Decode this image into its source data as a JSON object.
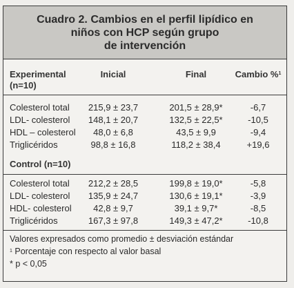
{
  "table": {
    "title_lines": [
      "Cuadro 2. Cambios en el perfil lipídico en",
      "niños con HCP según grupo",
      "de intervención"
    ],
    "headers": {
      "group_line1": "Experimental",
      "group_line2": "(n=10)",
      "initial": "Inicial",
      "final": "Final",
      "change": "Cambio %",
      "change_sup": "1"
    },
    "experimental": {
      "rows": [
        {
          "label": "Colesterol total",
          "initial": "215,9 ± 23,7",
          "final": "201,5 ± 28,9*",
          "change": "-6,7"
        },
        {
          "label": "LDL- colesterol",
          "initial": "148,1 ± 20,7",
          "final": "132,5 ± 22,5*",
          "change": "-10,5"
        },
        {
          "label": "HDL – colesterol",
          "initial": "48,0 ± 6,8",
          "final": "43,5 ± 9,9",
          "change": "-9,4"
        },
        {
          "label": "Triglicéridos",
          "initial": "98,8 ± 16,8",
          "final": "118,2 ± 38,4",
          "change": "+19,6"
        }
      ]
    },
    "control": {
      "label": "Control (n=10)",
      "rows": [
        {
          "label": "Colesterol total",
          "initial": "212,2 ± 28,5",
          "final": "199,8 ± 19,0*",
          "change": "-5,8"
        },
        {
          "label": "LDL- colesterol",
          "initial": "135,9 ± 24,7",
          "final": "130,6 ± 19,1*",
          "change": "-3,9"
        },
        {
          "label": "HDL- colesterol",
          "initial": "42,8 ± 9,7",
          "final": "39,1 ± 9,7*",
          "change": "-8,5"
        },
        {
          "label": "Triglicéridos",
          "initial": "167,3 ± 97,8",
          "final": "149,3 ± 47,2*",
          "change": "-10,8"
        }
      ]
    },
    "notes": {
      "line1": "Valores expresados como promedio ± desviación estándar",
      "line2_sup": "1",
      "line2": "Porcentaje con respecto al valor basal",
      "line3": "* p < 0,05"
    }
  }
}
